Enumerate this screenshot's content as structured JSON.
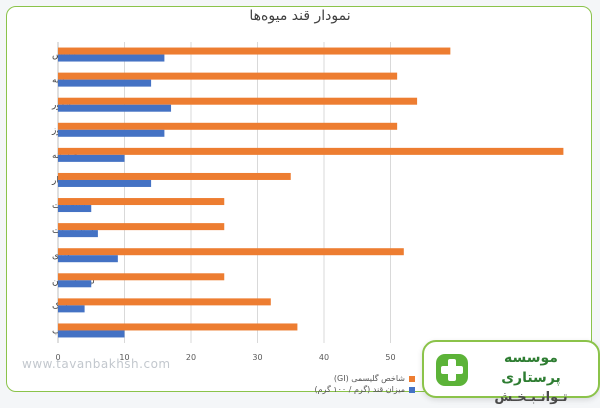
{
  "chart_data": {
    "type": "bar",
    "orientation": "horizontal",
    "title": "نمودار قند میوه‌ها",
    "categories": [
      "آناناس",
      "انبه",
      "انگور",
      "موز",
      "هندوانه",
      "انار",
      "شاه توت",
      "گریپ‌فروت",
      "کیوی",
      "لیمو شیرین",
      "تمشک",
      "سیب"
    ],
    "series": [
      {
        "name": "شاخص گلیسمی (GI)",
        "color": "#ed7d31",
        "values": [
          59,
          51,
          54,
          51,
          76,
          35,
          25,
          25,
          52,
          25,
          32,
          36
        ]
      },
      {
        "name": "میزان قند (گرم / ۱۰۰ گرم)",
        "color": "#4472c4",
        "values": [
          16,
          14,
          17,
          16,
          10,
          14,
          5,
          6,
          9,
          5,
          4,
          10
        ]
      }
    ],
    "xlim": [
      0,
      80
    ],
    "xticks": [
      0,
      10,
      20,
      30,
      40,
      50
    ],
    "grid": true,
    "legend_position": "bottom"
  },
  "watermark": {
    "text": "www.tavanbakhsh.com"
  },
  "logo": {
    "line1": "موسسه پرستاری",
    "line2": "تـوانـبـخـش",
    "color": "#5cb338"
  }
}
